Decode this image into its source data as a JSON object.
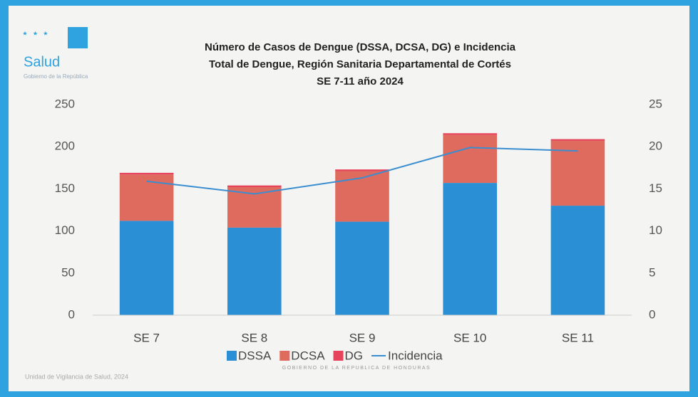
{
  "logo": {
    "name": "Salud",
    "subtitle": "Gobierno de la República"
  },
  "footer": "Unidad de Vigilancia de Salud, 2024",
  "watermark": "GOBIERNO DE LA REPUBLICA DE HONDURAS",
  "chart_data": {
    "type": "bar",
    "stacked": true,
    "title": [
      "Número de Casos de Dengue (DSSA, DCSA, DG) e Incidencia",
      "Total de Dengue, Región Sanitaria Departamental de Cortés",
      "SE 7-11 año 2024"
    ],
    "categories": [
      "SE 7",
      "SE 8",
      "SE 9",
      "SE 10",
      "SE 11"
    ],
    "series": [
      {
        "name": "DSSA",
        "color": "#2b8fd6",
        "values": [
          112,
          104,
          111,
          157,
          130
        ]
      },
      {
        "name": "DCSA",
        "color": "#df6a5e",
        "values": [
          55,
          48,
          60,
          57,
          77
        ]
      },
      {
        "name": "DG",
        "color": "#e6445a",
        "values": [
          2,
          2,
          2,
          2,
          2
        ]
      },
      {
        "name": "Incidencia",
        "color": "#3a8ed0",
        "type": "line",
        "axis": "y2",
        "values": [
          15.9,
          14.4,
          16.3,
          19.9,
          19.5
        ]
      }
    ],
    "ylim": [
      0,
      250
    ],
    "yticks": [
      0,
      50,
      100,
      150,
      200,
      250
    ],
    "y2lim": [
      0,
      25
    ],
    "y2ticks": [
      0,
      5,
      10,
      15,
      20,
      25
    ],
    "grid": false,
    "legend": "bottom"
  }
}
